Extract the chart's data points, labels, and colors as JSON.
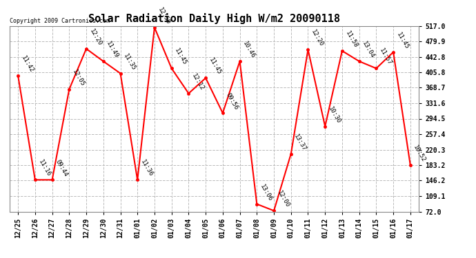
{
  "title": "Solar Radiation Daily High W/m2 20090118",
  "copyright": "Copyright 2009 Cartronics.com",
  "x_labels": [
    "12/25",
    "12/26",
    "12/27",
    "12/28",
    "12/29",
    "12/30",
    "12/31",
    "01/01",
    "01/02",
    "01/03",
    "01/04",
    "01/05",
    "01/06",
    "01/07",
    "01/08",
    "01/09",
    "01/10",
    "01/11",
    "01/12",
    "01/13",
    "01/14",
    "01/15",
    "01/16",
    "01/17"
  ],
  "y_values": [
    397,
    148,
    148,
    365,
    462,
    432,
    403,
    148,
    513,
    415,
    355,
    392,
    308,
    432,
    90,
    74,
    210,
    460,
    276,
    457,
    432,
    415,
    454,
    183
  ],
  "time_labels": [
    "11:42",
    "11:16",
    "09:44",
    "12:05",
    "12:20",
    "11:49",
    "11:35",
    "11:36",
    "12:50",
    "11:45",
    "12:12",
    "11:45",
    "09:56",
    "10:46",
    "13:06",
    "12:00",
    "13:37",
    "12:20",
    "10:30",
    "11:58",
    "13:04",
    "11:57",
    "11:45",
    "10:52"
  ],
  "y_ticks": [
    72.0,
    109.1,
    146.2,
    183.2,
    220.3,
    257.4,
    294.5,
    331.6,
    368.7,
    405.8,
    442.8,
    479.9,
    517.0
  ],
  "y_tick_labels": [
    "72.0",
    "109.1",
    "146.2",
    "183.2",
    "220.3",
    "257.4",
    "294.5",
    "331.6",
    "368.7",
    "405.8",
    "442.8",
    "479.9",
    "517.0"
  ],
  "y_min": 72.0,
  "y_max": 517.0,
  "line_color": "#FF0000",
  "marker_color": "#FF0000",
  "bg_color": "#FFFFFF",
  "grid_color": "#BBBBBB",
  "title_fontsize": 11,
  "label_fontsize": 6.5,
  "tick_fontsize": 7,
  "copyright_fontsize": 6
}
